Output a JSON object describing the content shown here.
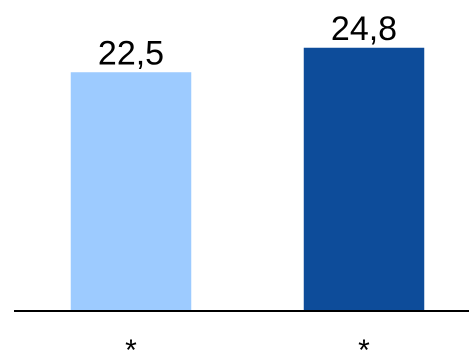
{
  "chart_data": {
    "type": "bar",
    "categories": [
      "*",
      "*"
    ],
    "values": [
      22.5,
      24.8
    ],
    "value_labels": [
      "22,5",
      "24,8"
    ],
    "colors": [
      "#9dcbff",
      "#0d4c9a"
    ],
    "ylim": [
      0,
      24.8
    ],
    "grid": false,
    "legend": "none",
    "title": "",
    "xlabel": "",
    "ylabel": ""
  }
}
